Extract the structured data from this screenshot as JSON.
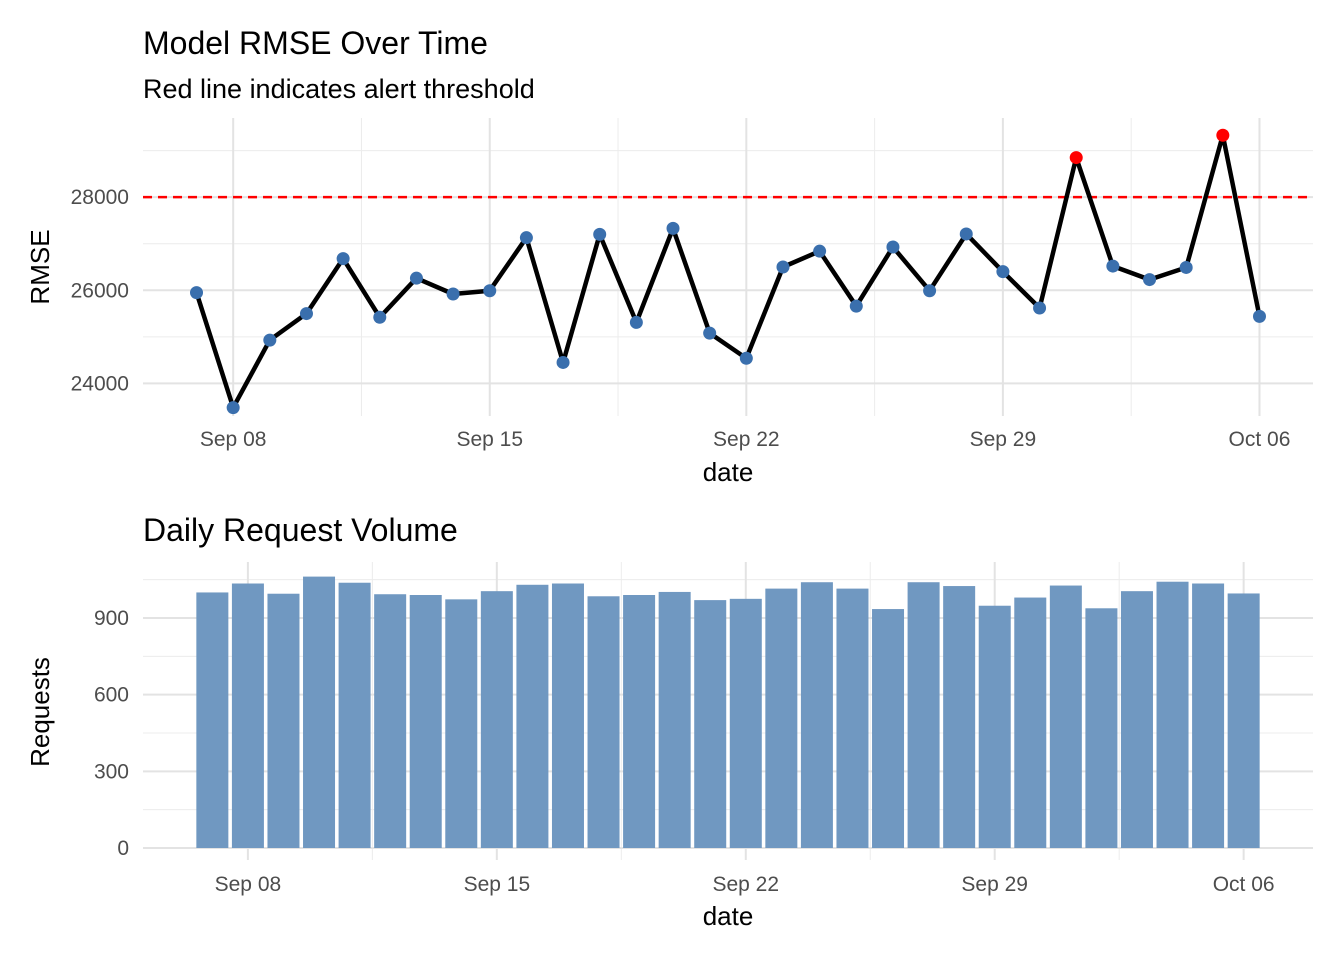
{
  "chart_data": [
    {
      "type": "line",
      "title": "Model RMSE Over Time",
      "subtitle": "Red line indicates alert threshold",
      "xlabel": "date",
      "ylabel": "RMSE",
      "x": [
        "2024-09-07",
        "2024-09-08",
        "2024-09-09",
        "2024-09-10",
        "2024-09-11",
        "2024-09-12",
        "2024-09-13",
        "2024-09-14",
        "2024-09-15",
        "2024-09-16",
        "2024-09-17",
        "2024-09-18",
        "2024-09-19",
        "2024-09-20",
        "2024-09-21",
        "2024-09-22",
        "2024-09-23",
        "2024-09-24",
        "2024-09-25",
        "2024-09-26",
        "2024-09-27",
        "2024-09-28",
        "2024-09-29",
        "2024-09-30",
        "2024-10-01",
        "2024-10-02",
        "2024-10-03",
        "2024-10-04",
        "2024-10-05",
        "2024-10-06"
      ],
      "values": [
        25950,
        23480,
        24930,
        25500,
        26680,
        25420,
        26260,
        25920,
        25990,
        27130,
        24450,
        27200,
        25310,
        27330,
        25080,
        24540,
        26500,
        26840,
        25660,
        26930,
        25990,
        27210,
        26400,
        25620,
        28850,
        26520,
        26230,
        26490,
        29330,
        25440
      ],
      "threshold": 28000,
      "threshold_color": "#ff0000",
      "alert_point_color": "#ff0000",
      "point_color": "#3a6fad",
      "line_color": "#000000",
      "ylim": [
        23300,
        29700
      ],
      "yticks": [
        24000,
        26000,
        28000
      ],
      "ytick_labels": [
        "24000",
        "26000",
        "28000"
      ],
      "xticks": [
        "2024-09-08",
        "2024-09-15",
        "2024-09-22",
        "2024-09-29",
        "2024-10-06"
      ],
      "xtick_labels": [
        "Sep 08",
        "Sep 15",
        "Sep 22",
        "Sep 29",
        "Oct 06"
      ],
      "grid": true
    },
    {
      "type": "bar",
      "title": "Daily Request Volume",
      "xlabel": "date",
      "ylabel": "Requests",
      "x": [
        "2024-09-07",
        "2024-09-08",
        "2024-09-09",
        "2024-09-10",
        "2024-09-11",
        "2024-09-12",
        "2024-09-13",
        "2024-09-14",
        "2024-09-15",
        "2024-09-16",
        "2024-09-17",
        "2024-09-18",
        "2024-09-19",
        "2024-09-20",
        "2024-09-21",
        "2024-09-22",
        "2024-09-23",
        "2024-09-24",
        "2024-09-25",
        "2024-09-26",
        "2024-09-27",
        "2024-09-28",
        "2024-09-29",
        "2024-09-30",
        "2024-10-01",
        "2024-10-02",
        "2024-10-03",
        "2024-10-04",
        "2024-10-05",
        "2024-10-06"
      ],
      "values": [
        1000,
        1035,
        995,
        1062,
        1038,
        993,
        990,
        973,
        1005,
        1030,
        1035,
        985,
        990,
        1002,
        970,
        975,
        1015,
        1040,
        1015,
        935,
        1040,
        1025,
        948,
        980,
        1027,
        938,
        1005,
        1042,
        1035,
        996
      ],
      "bar_color": "#7098c1",
      "ylim": [
        0,
        1100
      ],
      "yticks": [
        0,
        300,
        600,
        900
      ],
      "ytick_labels": [
        "0",
        "300",
        "600",
        "900"
      ],
      "xticks": [
        "2024-09-08",
        "2024-09-15",
        "2024-09-22",
        "2024-09-29",
        "2024-10-06"
      ],
      "xtick_labels": [
        "Sep 08",
        "Sep 15",
        "Sep 22",
        "Sep 29",
        "Oct 06"
      ],
      "grid": true
    }
  ]
}
